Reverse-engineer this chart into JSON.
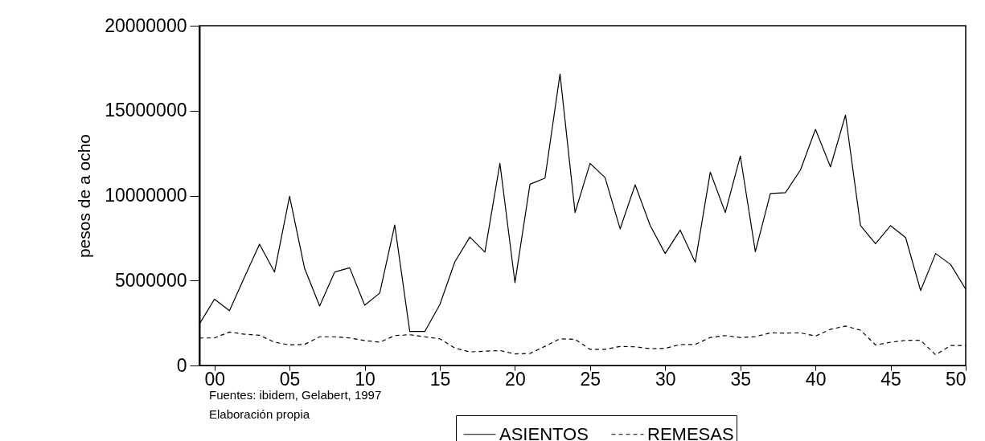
{
  "chart_data": {
    "type": "line",
    "ylabel": "pesos de a ocho",
    "x": [
      -1,
      0,
      1,
      2,
      3,
      4,
      5,
      6,
      7,
      8,
      9,
      10,
      11,
      12,
      13,
      14,
      15,
      16,
      17,
      18,
      19,
      20,
      21,
      22,
      23,
      24,
      25,
      26,
      27,
      28,
      29,
      30,
      31,
      32,
      33,
      34,
      35,
      36,
      37,
      38,
      39,
      40,
      41,
      42,
      43,
      44,
      45,
      46,
      47,
      48,
      49,
      50
    ],
    "series": [
      {
        "name": "ASIENTOS",
        "color": "#000000",
        "line_style": "solid",
        "values": [
          2440000,
          3900000,
          3230000,
          5200000,
          7140000,
          5500000,
          9960000,
          5720000,
          3500000,
          5500000,
          5750000,
          3550000,
          4260000,
          8270000,
          2000000,
          2000000,
          3580000,
          6100000,
          7560000,
          6670000,
          11900000,
          4880000,
          10670000,
          11030000,
          17160000,
          9000000,
          11900000,
          11060000,
          8040000,
          10640000,
          8240000,
          6590000,
          7970000,
          6070000,
          11380000,
          9000000,
          12330000,
          6700000,
          10120000,
          10170000,
          11500000,
          13900000,
          11690000,
          14740000,
          8230000,
          7170000,
          8230000,
          7530000,
          4410000,
          6590000,
          5940000,
          4490000
        ]
      },
      {
        "name": "REMESAS",
        "color": "#000000",
        "line_style": "dashed",
        "values": [
          1620000,
          1620000,
          1970000,
          1840000,
          1780000,
          1370000,
          1210000,
          1240000,
          1690000,
          1690000,
          1620000,
          1470000,
          1370000,
          1760000,
          1810000,
          1690000,
          1570000,
          1030000,
          800000,
          840000,
          880000,
          680000,
          710000,
          1130000,
          1570000,
          1540000,
          950000,
          950000,
          1120000,
          1100000,
          990000,
          1010000,
          1230000,
          1240000,
          1650000,
          1760000,
          1650000,
          1700000,
          1920000,
          1910000,
          1920000,
          1730000,
          2130000,
          2320000,
          2080000,
          1210000,
          1370000,
          1480000,
          1480000,
          630000,
          1180000,
          1180000
        ]
      }
    ],
    "xlim": [
      -1,
      50
    ],
    "xticks": [
      {
        "value": 0,
        "label": "00"
      },
      {
        "value": 5,
        "label": "05"
      },
      10,
      15,
      20,
      25,
      30,
      35,
      40,
      45,
      50
    ],
    "ylim": [
      0,
      20000000
    ],
    "yticks": [
      0,
      5000000,
      10000000,
      15000000,
      20000000
    ],
    "grid": false,
    "legend": "bottom",
    "marker": "none",
    "annotations": [
      "Fuentes: ibidem, Gelabert, 1997",
      "Elaboración propia"
    ]
  }
}
